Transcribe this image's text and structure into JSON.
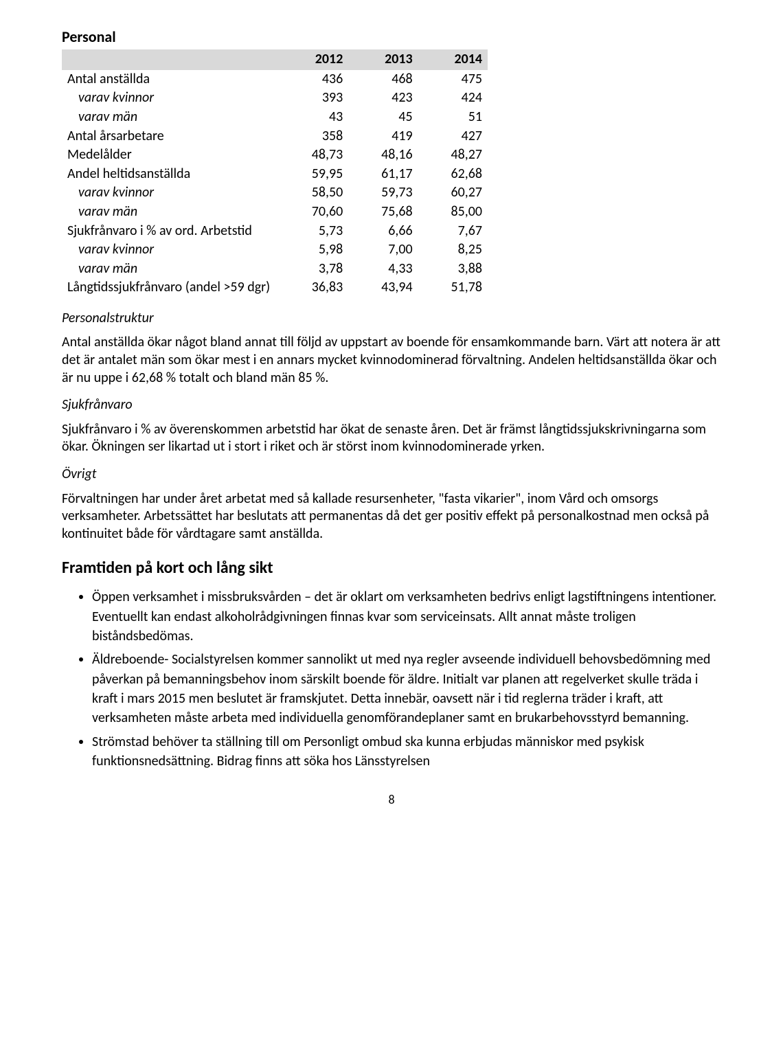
{
  "section_title": "Personal",
  "table": {
    "header_blank": "",
    "years": [
      "2012",
      "2013",
      "2014"
    ],
    "rows": [
      {
        "label": "Antal anställda",
        "indent": false,
        "v": [
          "436",
          "468",
          "475"
        ]
      },
      {
        "label": "varav kvinnor",
        "indent": true,
        "v": [
          "393",
          "423",
          "424"
        ]
      },
      {
        "label": "varav män",
        "indent": true,
        "v": [
          "43",
          "45",
          "51"
        ]
      },
      {
        "label": "Antal årsarbetare",
        "indent": false,
        "v": [
          "358",
          "419",
          "427"
        ]
      },
      {
        "label": "Medelålder",
        "indent": false,
        "v": [
          "48,73",
          "48,16",
          "48,27"
        ]
      },
      {
        "label": "Andel heltidsanställda",
        "indent": false,
        "v": [
          "59,95",
          "61,17",
          "62,68"
        ]
      },
      {
        "label": "varav kvinnor",
        "indent": true,
        "v": [
          "58,50",
          "59,73",
          "60,27"
        ]
      },
      {
        "label": "varav  män",
        "indent": true,
        "v": [
          "70,60",
          "75,68",
          "85,00"
        ]
      },
      {
        "label": "Sjukfrånvaro i % av ord. Arbetstid",
        "indent": false,
        "v": [
          "5,73",
          "6,66",
          "7,67"
        ]
      },
      {
        "label": "varav kvinnor",
        "indent": true,
        "v": [
          "5,98",
          "7,00",
          "8,25"
        ]
      },
      {
        "label": "varav  män",
        "indent": true,
        "v": [
          "3,78",
          "4,33",
          "3,88"
        ]
      },
      {
        "label": "Långtidssjukfrånvaro (andel >59 dgr)",
        "indent": false,
        "v": [
          "36,83",
          "43,94",
          "51,78"
        ]
      }
    ]
  },
  "sub1_title": "Personalstruktur",
  "sub1_para": "Antal anställda ökar något bland annat till följd av uppstart av boende för ensamkommande barn. Värt att notera är att det är antalet män som ökar mest i en annars mycket kvinnodominerad förvaltning. Andelen heltidsanställda ökar och är nu uppe i 62,68 % totalt och bland män 85 %.",
  "sub2_title": "Sjukfrånvaro",
  "sub2_para": "Sjukfrånvaro i % av överenskommen arbetstid har ökat de senaste åren. Det är främst långtidssjukskrivningarna som ökar. Ökningen ser likartad ut i stort i riket och är störst inom kvinnodominerade yrken.",
  "sub3_title": "Övrigt",
  "sub3_para": "Förvaltningen har under året arbetat med så kallade resursenheter, \"fasta vikarier\", inom Vård och omsorgs verksamheter. Arbetssättet har beslutats att permanentas då det ger positiv effekt på personalkostnad men också på kontinuitet både för vårdtagare samt anställda.",
  "framtid_title": "Framtiden på kort och lång sikt",
  "bullets": [
    "Öppen verksamhet i missbruksvården – det är oklart om verksamheten bedrivs enligt lagstiftningens intentioner. Eventuellt kan endast alkoholrådgivningen finnas kvar som serviceinsats. Allt annat måste troligen biståndsbedömas.",
    "Äldreboende- Socialstyrelsen kommer sannolikt ut med nya regler avseende individuell behovsbedömning med påverkan på bemanningsbehov inom särskilt boende för äldre. Initialt var planen att regelverket skulle träda i kraft i mars 2015 men beslutet är framskjutet. Detta innebär, oavsett när i tid reglerna träder i kraft, att verksamheten måste arbeta med individuella genomförandeplaner samt en brukarbehovsstyrd bemanning.",
    "Strömstad behöver ta ställning till om Personligt ombud ska kunna erbjudas människor med psykisk funktionsnedsättning. Bidrag finns att söka hos Länsstyrelsen"
  ],
  "page_number": "8"
}
